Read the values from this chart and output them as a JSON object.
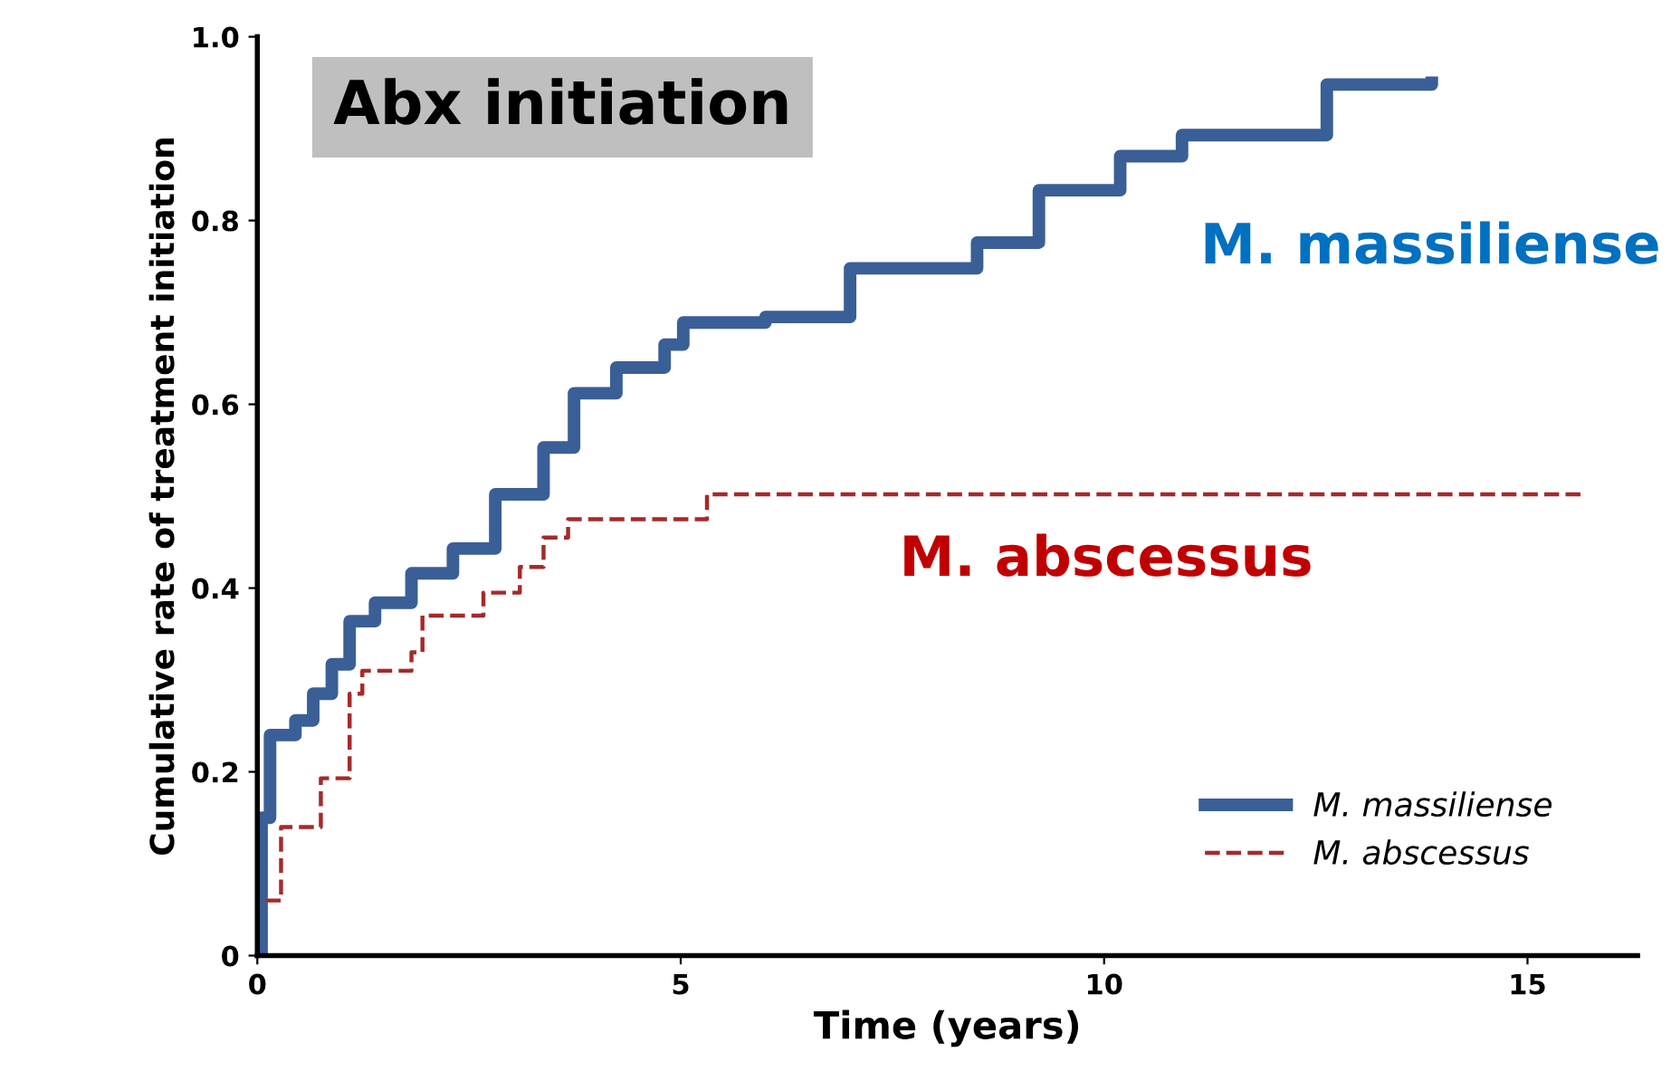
{
  "chart_data": {
    "type": "step",
    "title": "Abx initiation",
    "xlabel": "Time (years)",
    "ylabel": "Cumulative rate of treatment initiation",
    "series": [
      {
        "name": "M. massiliense",
        "color": "#3a5f96",
        "x": [
          0,
          0.05,
          0.15,
          0.45,
          0.66,
          0.88,
          1.09,
          1.39,
          1.82,
          2.31,
          2.81,
          3.38,
          3.74,
          4.24,
          4.81,
          5.03,
          6.0,
          7.0,
          8.5,
          9.23,
          10.19,
          10.92,
          12.63,
          13.87
        ],
        "values": [
          0,
          0.15,
          0.24,
          0.256,
          0.285,
          0.317,
          0.364,
          0.384,
          0.416,
          0.443,
          0.502,
          0.553,
          0.612,
          0.64,
          0.665,
          0.689,
          0.695,
          0.748,
          0.776,
          0.833,
          0.87,
          0.893,
          0.948,
          0.95
        ]
      },
      {
        "name": "M. abscessus",
        "color": "#a52a2a",
        "line_style": "dashed",
        "x": [
          0.1,
          0.28,
          0.75,
          1.09,
          1.24,
          1.82,
          1.95,
          2.67,
          3.1,
          3.38,
          3.67,
          5.31,
          15.7
        ],
        "values": [
          0.06,
          0.14,
          0.193,
          0.285,
          0.31,
          0.33,
          0.37,
          0.395,
          0.423,
          0.455,
          0.475,
          0.502,
          0.502
        ]
      }
    ],
    "annotations": [
      "M. massiliense",
      "M. abscessus"
    ],
    "xlim": [
      0,
      16.3
    ],
    "xticks": [
      0,
      5,
      10,
      15
    ],
    "ylim": [
      0,
      1.0
    ],
    "yticks": [
      {
        "value": 0,
        "label": "0"
      },
      0.2,
      0.4,
      0.6,
      0.8,
      {
        "value": 1.0,
        "label": "1.0"
      }
    ],
    "legend": "bottom right",
    "grid": false
  }
}
